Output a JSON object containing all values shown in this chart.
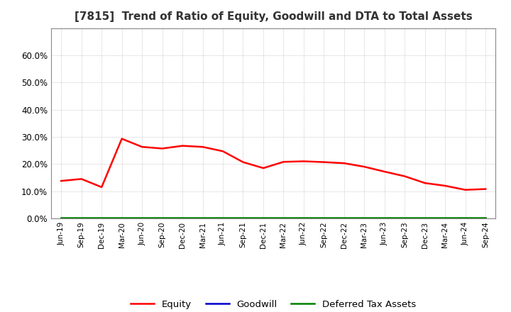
{
  "title": "[7815]  Trend of Ratio of Equity, Goodwill and DTA to Total Assets",
  "x_labels": [
    "Jun-19",
    "Sep-19",
    "Dec-19",
    "Mar-20",
    "Jun-20",
    "Sep-20",
    "Dec-20",
    "Mar-21",
    "Jun-21",
    "Sep-21",
    "Dec-21",
    "Mar-22",
    "Jun-22",
    "Sep-22",
    "Dec-22",
    "Mar-23",
    "Jun-23",
    "Sep-23",
    "Dec-23",
    "Mar-24",
    "Jun-24",
    "Sep-24"
  ],
  "equity": [
    0.138,
    0.145,
    0.115,
    0.293,
    0.263,
    0.257,
    0.267,
    0.263,
    0.247,
    0.207,
    0.185,
    0.208,
    0.21,
    0.207,
    0.203,
    0.19,
    0.172,
    0.155,
    0.13,
    0.12,
    0.105,
    0.108
  ],
  "goodwill": [
    0.0,
    0.0,
    0.0,
    0.0,
    0.0,
    0.0,
    0.0,
    0.0,
    0.0,
    0.0,
    0.0,
    0.0,
    0.0,
    0.0,
    0.0,
    0.0,
    0.0,
    0.0,
    0.0,
    0.0,
    0.0,
    0.0
  ],
  "dta": [
    0.003,
    0.003,
    0.003,
    0.003,
    0.003,
    0.003,
    0.003,
    0.003,
    0.003,
    0.003,
    0.003,
    0.003,
    0.003,
    0.003,
    0.003,
    0.003,
    0.003,
    0.003,
    0.003,
    0.003,
    0.003,
    0.003
  ],
  "equity_color": "#FF0000",
  "goodwill_color": "#0000CC",
  "dta_color": "#008000",
  "ylim": [
    0.0,
    0.7
  ],
  "yticks": [
    0.0,
    0.1,
    0.2,
    0.3,
    0.4,
    0.5,
    0.6
  ],
  "background_color": "#FFFFFF",
  "plot_bg_color": "#FFFFFF",
  "grid_color": "#999999",
  "title_fontsize": 11,
  "legend_labels": [
    "Equity",
    "Goodwill",
    "Deferred Tax Assets"
  ]
}
